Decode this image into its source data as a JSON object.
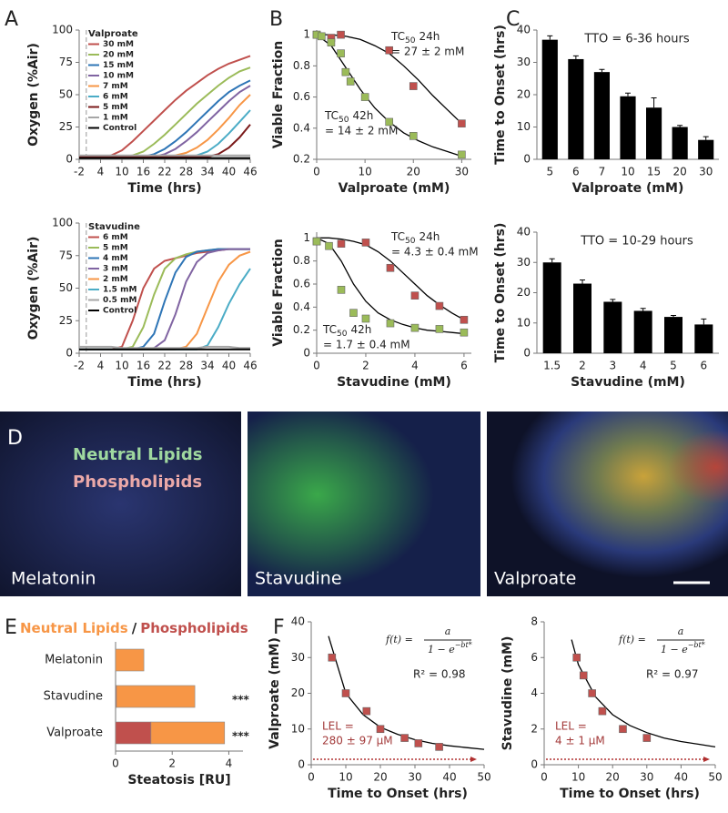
{
  "chart_data": [
    {
      "type": "line",
      "panel_label": "A",
      "legend_title": "Valproate",
      "xlabel": "Time (hrs)",
      "ylabel": "Oxygen (%Air)",
      "xlim": [
        -2,
        46
      ],
      "xticks": [
        -2,
        4,
        10,
        16,
        22,
        28,
        34,
        40,
        46
      ],
      "ylim": [
        0,
        100
      ],
      "yticks": [
        0,
        25,
        50,
        75,
        100
      ],
      "x": [
        -2,
        1,
        4,
        7,
        10,
        13,
        16,
        19,
        22,
        25,
        28,
        31,
        34,
        37,
        40,
        43,
        46
      ],
      "series": [
        {
          "name": "30 mM",
          "color": "#c0504d",
          "values": [
            2,
            2,
            2,
            3,
            7,
            14,
            22,
            30,
            38,
            46,
            53,
            59,
            65,
            70,
            74,
            77,
            80
          ]
        },
        {
          "name": "20 mM",
          "color": "#9bbb59",
          "values": [
            2,
            2,
            2,
            2,
            2,
            3,
            6,
            12,
            19,
            27,
            35,
            43,
            50,
            57,
            63,
            68,
            71
          ]
        },
        {
          "name": "15 mM",
          "color": "#2e75b6",
          "values": [
            2,
            2,
            2,
            2,
            2,
            2,
            2,
            4,
            8,
            14,
            21,
            29,
            37,
            45,
            52,
            57,
            61
          ]
        },
        {
          "name": "10 mM",
          "color": "#8064a2",
          "values": [
            2,
            2,
            2,
            2,
            2,
            2,
            2,
            2,
            4,
            8,
            14,
            21,
            29,
            37,
            45,
            52,
            57
          ]
        },
        {
          "name": "7 mM",
          "color": "#f79646",
          "values": [
            2,
            2,
            2,
            2,
            2,
            2,
            2,
            2,
            2,
            3,
            5,
            9,
            15,
            23,
            32,
            42,
            50
          ]
        },
        {
          "name": "6 mM",
          "color": "#4bacc6",
          "values": [
            2,
            2,
            2,
            2,
            2,
            2,
            2,
            2,
            2,
            2,
            2,
            3,
            6,
            12,
            20,
            29,
            38
          ]
        },
        {
          "name": "5 mM",
          "color": "#7b1a1a",
          "values": [
            2,
            2,
            2,
            2,
            2,
            2,
            2,
            2,
            2,
            2,
            2,
            2,
            2,
            4,
            9,
            17,
            27
          ]
        },
        {
          "name": "1 mM",
          "color": "#a6a6a6",
          "values": [
            3,
            3,
            3,
            3,
            3,
            3,
            3,
            3,
            3,
            3,
            3,
            3,
            3,
            3,
            3,
            3,
            3
          ]
        },
        {
          "name": "Control",
          "color": "#000000",
          "values": [
            1,
            1,
            1,
            1,
            1,
            1,
            1,
            1,
            1,
            1,
            1,
            1,
            1,
            1,
            1,
            1,
            1
          ]
        }
      ]
    },
    {
      "type": "line",
      "legend_title": "Stavudine",
      "xlabel": "Time (hrs)",
      "ylabel": "Oxygen (%Air)",
      "xlim": [
        -2,
        46
      ],
      "xticks": [
        -2,
        4,
        10,
        16,
        22,
        28,
        34,
        40,
        46
      ],
      "ylim": [
        0,
        100
      ],
      "yticks": [
        0,
        25,
        50,
        75,
        100
      ],
      "x": [
        -2,
        1,
        4,
        7,
        10,
        13,
        16,
        19,
        22,
        25,
        28,
        31,
        34,
        37,
        40,
        43,
        46
      ],
      "series": [
        {
          "name": "6 mM",
          "color": "#c0504d",
          "values": [
            3,
            3,
            3,
            3,
            5,
            25,
            50,
            65,
            71,
            73,
            75,
            77,
            78,
            79,
            80,
            80,
            80
          ]
        },
        {
          "name": "5 mM",
          "color": "#9bbb59",
          "values": [
            3,
            3,
            3,
            3,
            3,
            5,
            20,
            45,
            65,
            73,
            76,
            78,
            79,
            80,
            80,
            80,
            80
          ]
        },
        {
          "name": "4 mM",
          "color": "#2e75b6",
          "values": [
            3,
            3,
            3,
            3,
            3,
            3,
            5,
            15,
            40,
            62,
            74,
            78,
            79,
            80,
            80,
            80,
            80
          ]
        },
        {
          "name": "3 mM",
          "color": "#8064a2",
          "values": [
            3,
            3,
            3,
            3,
            3,
            3,
            3,
            4,
            10,
            30,
            55,
            70,
            77,
            79,
            80,
            80,
            80
          ]
        },
        {
          "name": "2 mM",
          "color": "#f79646",
          "values": [
            3,
            3,
            3,
            3,
            3,
            3,
            3,
            3,
            3,
            3,
            5,
            15,
            35,
            55,
            68,
            75,
            78
          ]
        },
        {
          "name": "1.5 mM",
          "color": "#4bacc6",
          "values": [
            3,
            3,
            3,
            3,
            3,
            3,
            3,
            3,
            3,
            3,
            3,
            3,
            6,
            20,
            38,
            53,
            65
          ]
        },
        {
          "name": "0.5 mM",
          "color": "#a6a6a6",
          "values": [
            5,
            5,
            5,
            5,
            4,
            4,
            4,
            4,
            4,
            4,
            4,
            4,
            5,
            5,
            5,
            4,
            4
          ]
        },
        {
          "name": "Control",
          "color": "#000000",
          "values": [
            3,
            3,
            3,
            3,
            3,
            3,
            3,
            3,
            3,
            3,
            3,
            3,
            3,
            3,
            3,
            3,
            3
          ]
        }
      ]
    },
    {
      "type": "scatter",
      "panel_label": "B",
      "xlabel": "Valproate (mM)",
      "ylabel": "Viable Fraction",
      "xlim": [
        0,
        32
      ],
      "xticks": [
        0,
        10,
        20,
        30
      ],
      "ylim": [
        0.2,
        1.03
      ],
      "yticks": [
        0.2,
        0.4,
        0.6,
        0.8,
        1
      ],
      "series": [
        {
          "color": "#c0504d",
          "x": [
            0,
            3,
            5,
            15,
            20,
            30
          ],
          "values": [
            1,
            0.98,
            1,
            0.9,
            0.67,
            0.43
          ]
        },
        {
          "color": "#9bbb59",
          "x": [
            0,
            1,
            3,
            5,
            6,
            7,
            10,
            15,
            20,
            30
          ],
          "values": [
            1,
            0.99,
            0.95,
            0.88,
            0.76,
            0.7,
            0.6,
            0.44,
            0.35,
            0.23
          ]
        }
      ],
      "fits": [
        {
          "color": "#000000",
          "x": [
            0,
            3,
            6,
            9,
            12,
            15,
            18,
            21,
            24,
            27,
            30
          ],
          "values": [
            1,
            1,
            0.99,
            0.97,
            0.93,
            0.88,
            0.8,
            0.71,
            0.61,
            0.52,
            0.43
          ]
        },
        {
          "color": "#000000",
          "x": [
            0,
            3,
            6,
            9,
            12,
            15,
            18,
            21,
            24,
            27,
            30
          ],
          "values": [
            1,
            0.93,
            0.79,
            0.65,
            0.53,
            0.44,
            0.37,
            0.32,
            0.28,
            0.25,
            0.22
          ]
        }
      ],
      "annotations": [
        {
          "label": "TC",
          "subscript": "50",
          "suffix": "24h",
          "value": "= 27 ± 2 mM"
        },
        {
          "label": "TC",
          "subscript": "50",
          "suffix": "42h",
          "value": "= 14 ± 2 mM"
        }
      ]
    },
    {
      "type": "scatter",
      "xlabel": "Stavudine (mM)",
      "ylabel": "Viable Fraction",
      "xlim": [
        0,
        6.3
      ],
      "xticks": [
        0,
        2,
        4,
        6
      ],
      "ylim": [
        0,
        1.05
      ],
      "yticks": [
        0,
        0.2,
        0.4,
        0.6,
        0.8,
        1
      ],
      "series": [
        {
          "color": "#c0504d",
          "x": [
            0,
            1,
            2,
            3,
            4,
            5,
            6
          ],
          "values": [
            0.97,
            0.95,
            0.96,
            0.74,
            0.5,
            0.41,
            0.29
          ]
        },
        {
          "color": "#9bbb59",
          "x": [
            0,
            0.5,
            1,
            1.5,
            2,
            3,
            4,
            5,
            6
          ],
          "values": [
            0.97,
            0.93,
            0.55,
            0.35,
            0.3,
            0.26,
            0.22,
            0.21,
            0.18
          ]
        }
      ],
      "fits": [
        {
          "color": "#000000",
          "x": [
            0,
            0.5,
            1,
            1.5,
            2,
            2.5,
            3,
            3.5,
            4,
            4.5,
            5,
            5.5,
            6
          ],
          "values": [
            1,
            1,
            0.99,
            0.97,
            0.94,
            0.88,
            0.8,
            0.7,
            0.6,
            0.5,
            0.42,
            0.35,
            0.29
          ]
        },
        {
          "color": "#000000",
          "x": [
            0,
            0.5,
            1,
            1.5,
            2,
            2.5,
            3,
            3.5,
            4,
            4.5,
            5,
            5.5,
            6
          ],
          "values": [
            1,
            0.95,
            0.8,
            0.6,
            0.45,
            0.35,
            0.29,
            0.25,
            0.22,
            0.2,
            0.19,
            0.18,
            0.17
          ]
        }
      ],
      "annotations": [
        {
          "label": "TC",
          "subscript": "50",
          "suffix": "24h",
          "value": "= 4.3 ± 0.4 mM"
        },
        {
          "label": "TC",
          "subscript": "50",
          "suffix": "42h",
          "value": "= 1.7 ± 0.4 mM"
        }
      ]
    },
    {
      "type": "bar",
      "panel_label": "C",
      "annotation": "TTO = 6-36 hours",
      "xlabel": "Valproate (mM)",
      "ylabel": "Time to Onset (hrs)",
      "color": "#000000",
      "ylim": [
        0,
        40
      ],
      "yticks": [
        0,
        10,
        20,
        30,
        40
      ],
      "categories": [
        "5",
        "6",
        "7",
        "10",
        "15",
        "20",
        "30"
      ],
      "values": [
        37,
        31,
        27,
        19.5,
        16,
        10,
        6
      ],
      "errors": [
        1.2,
        1,
        0.8,
        1,
        3,
        0.5,
        1
      ]
    },
    {
      "type": "bar",
      "annotation": "TTO = 10-29 hours",
      "xlabel": "Stavudine (mM)",
      "ylabel": "Time to Onset (hrs)",
      "color": "#000000",
      "ylim": [
        0,
        40
      ],
      "yticks": [
        0,
        10,
        20,
        30,
        40
      ],
      "categories": [
        "1.5",
        "2",
        "3",
        "4",
        "5",
        "6"
      ],
      "values": [
        30,
        23,
        17,
        14,
        12,
        9.5
      ],
      "errors": [
        1.2,
        1.2,
        0.8,
        0.8,
        0.5,
        1.8
      ]
    },
    {
      "type": "image",
      "panel_label": "D",
      "stains": [
        "Neutral Lipids",
        "Phospholipids"
      ],
      "panels": [
        "Melatonin",
        "Stavudine",
        "Valproate"
      ]
    },
    {
      "type": "hbar",
      "panel_label": "E",
      "legend_separator": "/",
      "xlabel": "Steatosis [RU]",
      "xlim": [
        0,
        4.5
      ],
      "xticks": [
        0,
        2,
        4
      ],
      "categories": [
        "Melatonin",
        "Stavudine",
        "Valproate"
      ],
      "series": [
        {
          "name": "Phospholipids",
          "color": "#c0504d",
          "values": [
            0,
            0.03,
            1.25
          ]
        },
        {
          "name": "Neutral Lipids",
          "color": "#f79646",
          "values": [
            1,
            2.77,
            2.6
          ]
        }
      ],
      "significance": [
        null,
        "***",
        "***"
      ]
    },
    {
      "type": "scatter",
      "panel_label": "F",
      "xlabel": "Time to Onset (hrs)",
      "ylabel": "Valproate (mM)",
      "xlim": [
        0,
        50
      ],
      "xticks": [
        0,
        10,
        20,
        30,
        40,
        50
      ],
      "ylim": [
        0,
        40
      ],
      "yticks": [
        0,
        10,
        20,
        30,
        40
      ],
      "series": [
        {
          "color": "#c0504d",
          "x": [
            6,
            10,
            16,
            20,
            27,
            31,
            37
          ],
          "values": [
            30,
            20,
            15,
            10,
            7.5,
            6,
            5
          ]
        }
      ],
      "fits": [
        {
          "color": "#000000",
          "x": [
            5,
            10,
            15,
            20,
            25,
            30,
            35,
            40,
            45,
            50
          ],
          "values": [
            36,
            20,
            14,
            10.5,
            8.5,
            7,
            6,
            5.3,
            4.8,
            4.3
          ]
        }
      ],
      "formula": {
        "lhs": "f(t) =",
        "numerator": "a",
        "denominator": "1 − e",
        "exponent": "−bt*"
      },
      "r2": "R² = 0.98",
      "lel": [
        "LEL =",
        "280 ± 97 µM"
      ]
    },
    {
      "type": "scatter",
      "xlabel": "Time to Onset (hrs)",
      "ylabel": "Stavudine (mM)",
      "xlim": [
        0,
        50
      ],
      "xticks": [
        0,
        10,
        20,
        30,
        40,
        50
      ],
      "ylim": [
        0,
        8
      ],
      "yticks": [
        0,
        2,
        4,
        6,
        8
      ],
      "series": [
        {
          "color": "#c0504d",
          "x": [
            9.5,
            11.5,
            14,
            17,
            23,
            30
          ],
          "values": [
            6,
            5,
            4,
            3,
            2,
            1.5
          ]
        }
      ],
      "fits": [
        {
          "color": "#000000",
          "x": [
            8,
            10,
            15,
            20,
            25,
            30,
            35,
            40,
            45,
            50
          ],
          "values": [
            7,
            5.6,
            3.8,
            2.8,
            2.2,
            1.8,
            1.5,
            1.3,
            1.15,
            1
          ]
        }
      ],
      "formula": {
        "lhs": "f(t) =",
        "numerator": "a",
        "denominator": "1 − e",
        "exponent": "−bt*"
      },
      "r2": "R² = 0.97",
      "lel": [
        "LEL =",
        "4 ± 1 µM"
      ]
    }
  ]
}
